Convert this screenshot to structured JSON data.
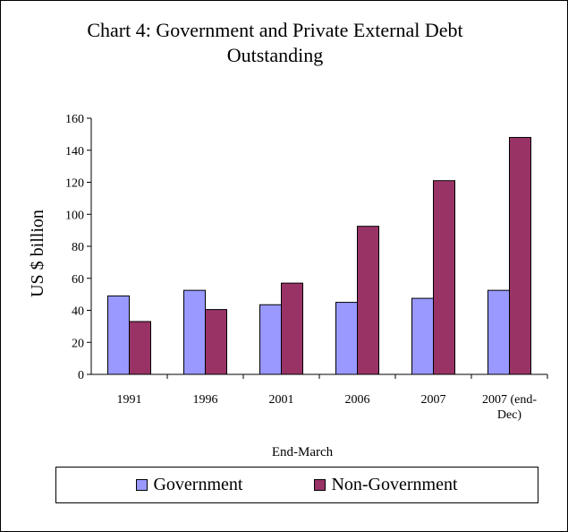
{
  "colors": {
    "government": "#9999ff",
    "non_government": "#993366"
  },
  "chart_data": {
    "type": "bar",
    "title_line1": "Chart 4: Government and Private External Debt",
    "title_line2": "Outstanding",
    "xlabel": "End-March",
    "ylabel": "US $ billion",
    "ylim": [
      0,
      160
    ],
    "yticks": [
      0,
      20,
      40,
      60,
      80,
      100,
      120,
      140,
      160
    ],
    "categories": [
      "1991",
      "1996",
      "2001",
      "2006",
      "2007",
      "2007 (end-Dec)"
    ],
    "category_lines": [
      [
        "1991"
      ],
      [
        "1996"
      ],
      [
        "2001"
      ],
      [
        "2006"
      ],
      [
        "2007"
      ],
      [
        "2007 (end-",
        "Dec)"
      ]
    ],
    "series": [
      {
        "name": "Government",
        "values": [
          49,
          52.5,
          43.5,
          45,
          47.5,
          52.5
        ]
      },
      {
        "name": "Non-Government",
        "values": [
          33,
          40.5,
          57,
          92.5,
          121,
          148
        ]
      }
    ],
    "grid": false,
    "legend": "bottom"
  }
}
